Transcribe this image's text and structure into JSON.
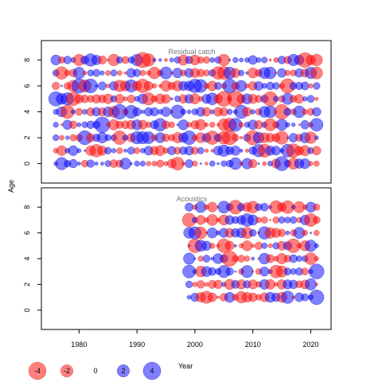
{
  "chart_data": {
    "type": "scatter",
    "ylabel": "Age",
    "xlabel": "Year",
    "xlim": [
      1973.5,
      2023.5
    ],
    "xticks": [
      1980,
      1990,
      2000,
      2010,
      2020
    ],
    "ylim": [
      -1.5,
      9.5
    ],
    "yticks": [
      0,
      2,
      4,
      6,
      8
    ],
    "colors": {
      "positive": "#0000ff",
      "negative": "#ff0000"
    },
    "panels": [
      {
        "title": "Residual catch",
        "years": [
          1976,
          1977,
          1978,
          1979,
          1980,
          1981,
          1982,
          1983,
          1984,
          1985,
          1986,
          1987,
          1988,
          1989,
          1990,
          1991,
          1992,
          1993,
          1994,
          1995,
          1996,
          1997,
          1998,
          1999,
          2000,
          2001,
          2002,
          2003,
          2004,
          2005,
          2006,
          2007,
          2008,
          2009,
          2010,
          2011,
          2012,
          2013,
          2014,
          2015,
          2016,
          2017,
          2018,
          2019,
          2020,
          2021
        ],
        "ages": [
          0,
          1,
          2,
          3,
          4,
          5,
          6,
          7,
          8
        ]
      },
      {
        "title": "Acoustics",
        "years": [
          1999,
          2000,
          2001,
          2002,
          2003,
          2004,
          2005,
          2006,
          2007,
          2008,
          2009,
          2010,
          2011,
          2012,
          2013,
          2014,
          2015,
          2016,
          2017,
          2018,
          2019,
          2020,
          2021
        ],
        "ages": [
          1,
          2,
          3,
          4,
          5,
          6,
          7,
          8
        ]
      }
    ],
    "legend": {
      "placement": "bottom-left",
      "items": [
        {
          "label": "-4",
          "value": -4
        },
        {
          "label": "-2",
          "value": -2
        },
        {
          "label": "0",
          "value": 0
        },
        {
          "label": "2",
          "value": 2
        },
        {
          "label": "4",
          "value": 4
        }
      ]
    },
    "grid": false
  }
}
